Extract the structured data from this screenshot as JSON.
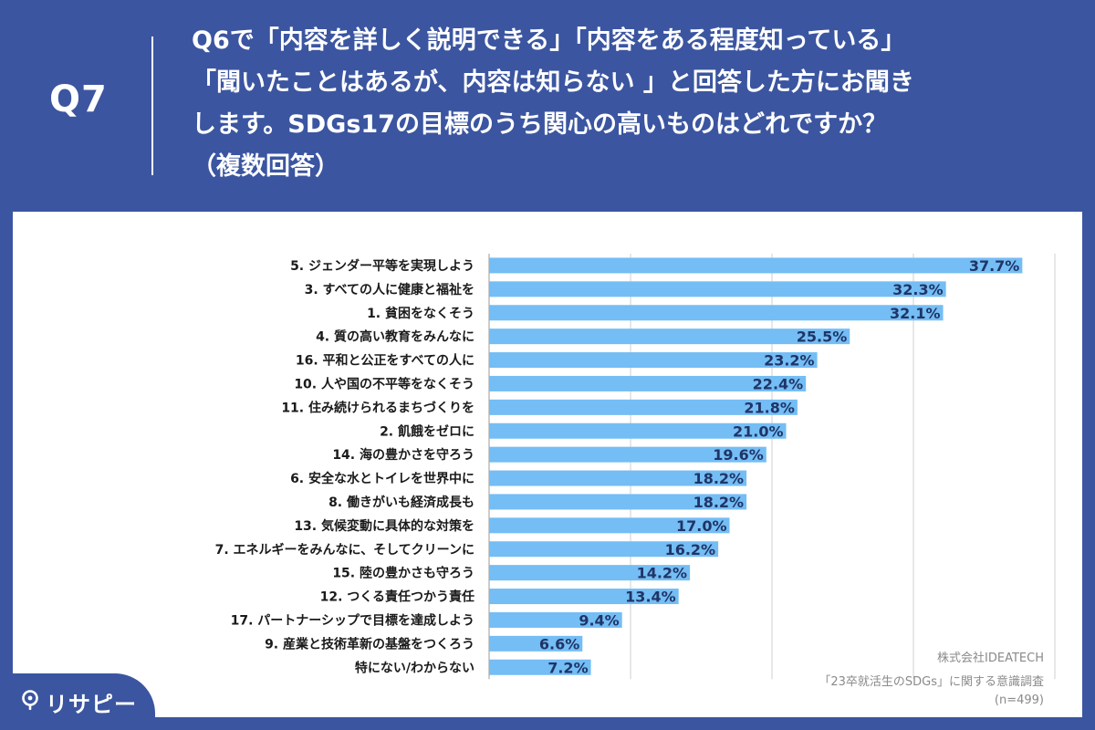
{
  "header": {
    "q_number": "Q7",
    "question_lines": [
      "Q6で「内容を詳しく説明できる」「内容をある程度知っている」",
      "「聞いたことはあるが、内容は知らない 」と回答した方にお聞き",
      "します。SDGs17の目標のうち関心の高いものはどれですか？",
      "（複数回答）"
    ]
  },
  "colors": {
    "background": "#3b55a0",
    "bar": "#74bdf5",
    "value_label": "#1f3566",
    "category_label": "#1a1a1a",
    "grid": "#cfcfcf"
  },
  "chart_data": {
    "type": "bar",
    "orientation": "horizontal",
    "categories": [
      "5. ジェンダー平等を実現しよう",
      "3. すべての人に健康と福祉を",
      "1. 貧困をなくそう",
      "4. 質の高い教育をみんなに",
      "16. 平和と公正をすべての人に",
      "10. 人や国の不平等をなくそう",
      "11. 住み続けられるまちづくりを",
      "2. 飢餓をゼロに",
      "14. 海の豊かさを守ろう",
      "6. 安全な水とトイレを世界中に",
      "8. 働きがいも経済成長も",
      "13. 気候変動に具体的な対策を",
      "7. エネルギーをみんなに、そしてクリーンに",
      "15. 陸の豊かさも守ろう",
      "12. つくる責任つかう責任",
      "17. パートナーシップで目標を達成しよう",
      "9. 産業と技術革新の基盤をつくろう",
      "特にない/わからない"
    ],
    "values": [
      37.7,
      32.3,
      32.1,
      25.5,
      23.2,
      22.4,
      21.8,
      21.0,
      19.6,
      18.2,
      18.2,
      17.0,
      16.2,
      14.2,
      13.4,
      9.4,
      6.6,
      7.2
    ],
    "value_labels": [
      "37.7%",
      "32.3%",
      "32.1%",
      "25.5%",
      "23.2%",
      "22.4%",
      "21.8%",
      "21.0%",
      "19.6%",
      "18.2%",
      "18.2%",
      "17.0%",
      "16.2%",
      "14.2%",
      "13.4%",
      "9.4%",
      "6.6%",
      "7.2%"
    ],
    "xlim": [
      0,
      40
    ],
    "gridlines": [
      10,
      20,
      30,
      40
    ],
    "title": "",
    "xlabel": "",
    "ylabel": ""
  },
  "credits": {
    "company": "株式会社IDEATECH",
    "survey": "「23卒就活生のSDGs」に関する意識調査",
    "sample": "(n=499)"
  },
  "logo": {
    "text": "リサピー",
    "icon": "pin-icon"
  }
}
